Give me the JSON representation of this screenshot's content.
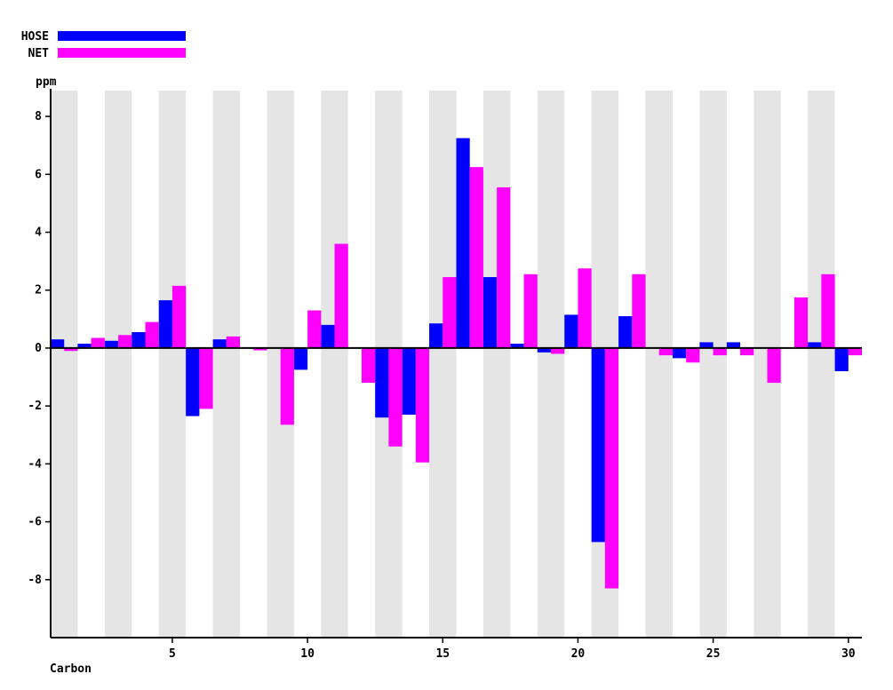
{
  "chart_data": {
    "type": "bar",
    "title": "",
    "xlabel": "Carbon",
    "ylabel": "ppm",
    "ylim": [
      -10,
      8.8
    ],
    "xlim": [
      0.5,
      30.5
    ],
    "yticks": [
      -8,
      -6,
      -4,
      -2,
      0,
      2,
      4,
      6,
      8
    ],
    "xticks": [
      5,
      10,
      15,
      20,
      25,
      30
    ],
    "ytick_labels": [
      "-8",
      "-6",
      "-4",
      "-2",
      "0",
      "2",
      "4",
      "6",
      "8"
    ],
    "xtick_labels": [
      "5",
      "10",
      "15",
      "20",
      "25",
      "30"
    ],
    "legend_position": "top-left",
    "background_bands": "alternating grey and white column stripes",
    "categories": [
      1,
      2,
      3,
      4,
      5,
      6,
      7,
      8,
      9,
      10,
      11,
      12,
      13,
      14,
      15,
      16,
      17,
      18,
      19,
      20,
      21,
      22,
      23,
      24,
      25,
      26,
      27,
      28,
      29,
      30
    ],
    "series": [
      {
        "name": "HOSE",
        "color": "#0000ff",
        "values": [
          0.3,
          0.15,
          0.25,
          0.55,
          1.65,
          -2.35,
          0.3,
          0,
          0,
          -0.75,
          0.8,
          0,
          -2.4,
          -2.3,
          0.85,
          7.25,
          2.45,
          0.15,
          -0.15,
          1.15,
          -6.7,
          1.1,
          0,
          -0.35,
          0.2,
          0.2,
          0,
          0,
          0.2,
          -0.8
        ]
      },
      {
        "name": "NET",
        "color": "#ff00ff",
        "values": [
          -0.1,
          0.35,
          0.45,
          0.9,
          2.15,
          -2.1,
          0.4,
          -0.08,
          -2.65,
          1.3,
          3.6,
          -1.2,
          -3.4,
          -3.95,
          2.45,
          6.25,
          5.55,
          2.55,
          -0.2,
          2.75,
          -8.3,
          2.55,
          -0.25,
          -0.5,
          -0.25,
          -0.25,
          -1.2,
          1.75,
          2.55,
          -0.25
        ]
      }
    ]
  }
}
